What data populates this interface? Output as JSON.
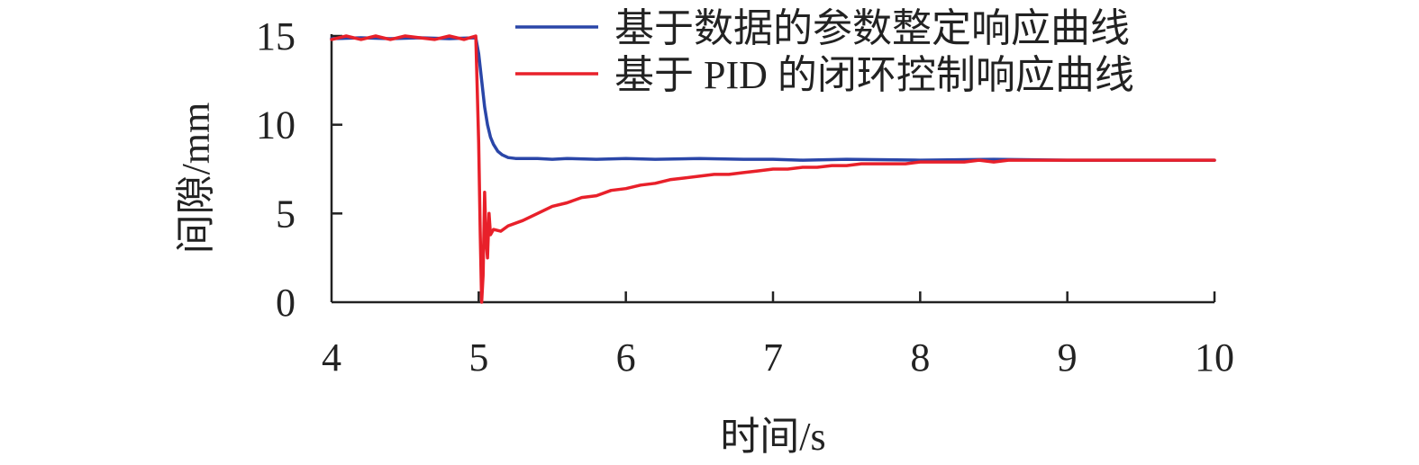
{
  "chart_data": {
    "type": "line",
    "xlabel": "时间/s",
    "ylabel": "间隙/mm",
    "xlim": [
      4,
      10
    ],
    "ylim": [
      0,
      15
    ],
    "xticks": [
      4,
      5,
      6,
      7,
      8,
      9,
      10
    ],
    "yticks": [
      0,
      5,
      10,
      15
    ],
    "xtick_labels": [
      "4",
      "5",
      "6",
      "7",
      "8",
      "9",
      "10"
    ],
    "ytick_labels": [
      "0",
      "5",
      "10",
      "15"
    ],
    "grid": false,
    "legend_position": "top-right",
    "series": [
      {
        "name": "基于数据的参数整定响应曲线",
        "color": "#2a46a8",
        "x": [
          4.0,
          4.2,
          4.4,
          4.6,
          4.8,
          4.98,
          5.0,
          5.02,
          5.04,
          5.06,
          5.08,
          5.1,
          5.13,
          5.16,
          5.2,
          5.25,
          5.3,
          5.4,
          5.5,
          5.6,
          5.8,
          6.0,
          6.2,
          6.5,
          6.8,
          7.0,
          7.2,
          7.5,
          8.0,
          8.5,
          9.0,
          9.5,
          10.0
        ],
        "y": [
          14.85,
          14.9,
          14.85,
          14.9,
          14.85,
          14.9,
          14.0,
          12.5,
          11.0,
          10.0,
          9.3,
          8.9,
          8.5,
          8.3,
          8.15,
          8.1,
          8.1,
          8.1,
          8.05,
          8.1,
          8.05,
          8.1,
          8.05,
          8.1,
          8.05,
          8.05,
          8.0,
          8.05,
          8.0,
          8.05,
          8.0,
          8.0,
          8.0
        ]
      },
      {
        "name": "基于 PID 的闭环控制响应曲线",
        "color": "#e8202a",
        "x": [
          4.0,
          4.1,
          4.2,
          4.3,
          4.4,
          4.5,
          4.6,
          4.7,
          4.8,
          4.9,
          4.98,
          5.0,
          5.01,
          5.02,
          5.03,
          5.04,
          5.05,
          5.06,
          5.07,
          5.08,
          5.1,
          5.15,
          5.2,
          5.3,
          5.4,
          5.5,
          5.6,
          5.7,
          5.8,
          5.9,
          6.0,
          6.1,
          6.2,
          6.3,
          6.4,
          6.5,
          6.6,
          6.7,
          6.8,
          6.9,
          7.0,
          7.1,
          7.2,
          7.3,
          7.4,
          7.5,
          7.6,
          7.7,
          7.8,
          7.9,
          8.0,
          8.1,
          8.2,
          8.3,
          8.4,
          8.5,
          8.6,
          8.7,
          8.8,
          8.9,
          9.0,
          9.1,
          9.2,
          9.3,
          9.4,
          9.5,
          9.6,
          9.7,
          9.8,
          9.9,
          10.0
        ],
        "y": [
          14.8,
          15.0,
          14.8,
          15.0,
          14.8,
          15.0,
          14.9,
          14.8,
          15.0,
          14.8,
          15.0,
          9.0,
          4.0,
          0.0,
          1.5,
          6.2,
          3.5,
          2.5,
          5.0,
          3.8,
          4.1,
          4.0,
          4.3,
          4.6,
          5.0,
          5.4,
          5.6,
          5.9,
          6.0,
          6.3,
          6.4,
          6.6,
          6.7,
          6.9,
          7.0,
          7.1,
          7.2,
          7.2,
          7.3,
          7.4,
          7.5,
          7.5,
          7.6,
          7.6,
          7.7,
          7.7,
          7.8,
          7.8,
          7.8,
          7.8,
          7.9,
          7.9,
          7.9,
          7.9,
          8.0,
          7.9,
          8.0,
          8.0,
          8.0,
          8.0,
          8.0,
          8.0,
          8.0,
          8.0,
          8.0,
          8.0,
          8.0,
          8.0,
          8.0,
          8.0,
          8.0
        ]
      }
    ]
  }
}
